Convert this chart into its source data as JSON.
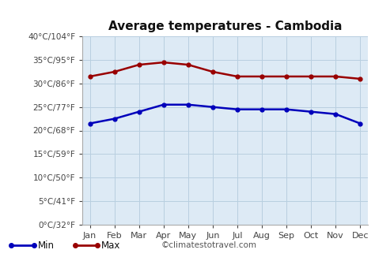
{
  "title": "Average temperatures - Cambodia",
  "months": [
    "Jan",
    "Feb",
    "Mar",
    "Apr",
    "May",
    "Jun",
    "Jul",
    "Aug",
    "Sep",
    "Oct",
    "Nov",
    "Dec"
  ],
  "min_temps": [
    21.5,
    22.5,
    24.0,
    25.5,
    25.5,
    25.0,
    24.5,
    24.5,
    24.5,
    24.0,
    23.5,
    21.5
  ],
  "max_temps": [
    31.5,
    32.5,
    34.0,
    34.5,
    34.0,
    32.5,
    31.5,
    31.5,
    31.5,
    31.5,
    31.5,
    31.0
  ],
  "min_color": "#0000bb",
  "max_color": "#990000",
  "plot_bg": "#ddeaf5",
  "fig_bg": "#ffffff",
  "grid_color": "#b8cfe0",
  "yticks_c": [
    0,
    5,
    10,
    15,
    20,
    25,
    30,
    35,
    40
  ],
  "ytick_labels": [
    "0°C/32°F",
    "5°C/41°F",
    "10°C/50°F",
    "15°C/59°F",
    "20°C/68°F",
    "25°C/77°F",
    "30°C/86°F",
    "35°C/95°F",
    "40°C/104°F"
  ],
  "ylim": [
    0,
    40
  ],
  "watermark": "©climatestotravel.com",
  "legend_min": "Min",
  "legend_max": "Max",
  "title_fontsize": 11,
  "tick_fontsize": 7.5,
  "xtick_fontsize": 8.0
}
